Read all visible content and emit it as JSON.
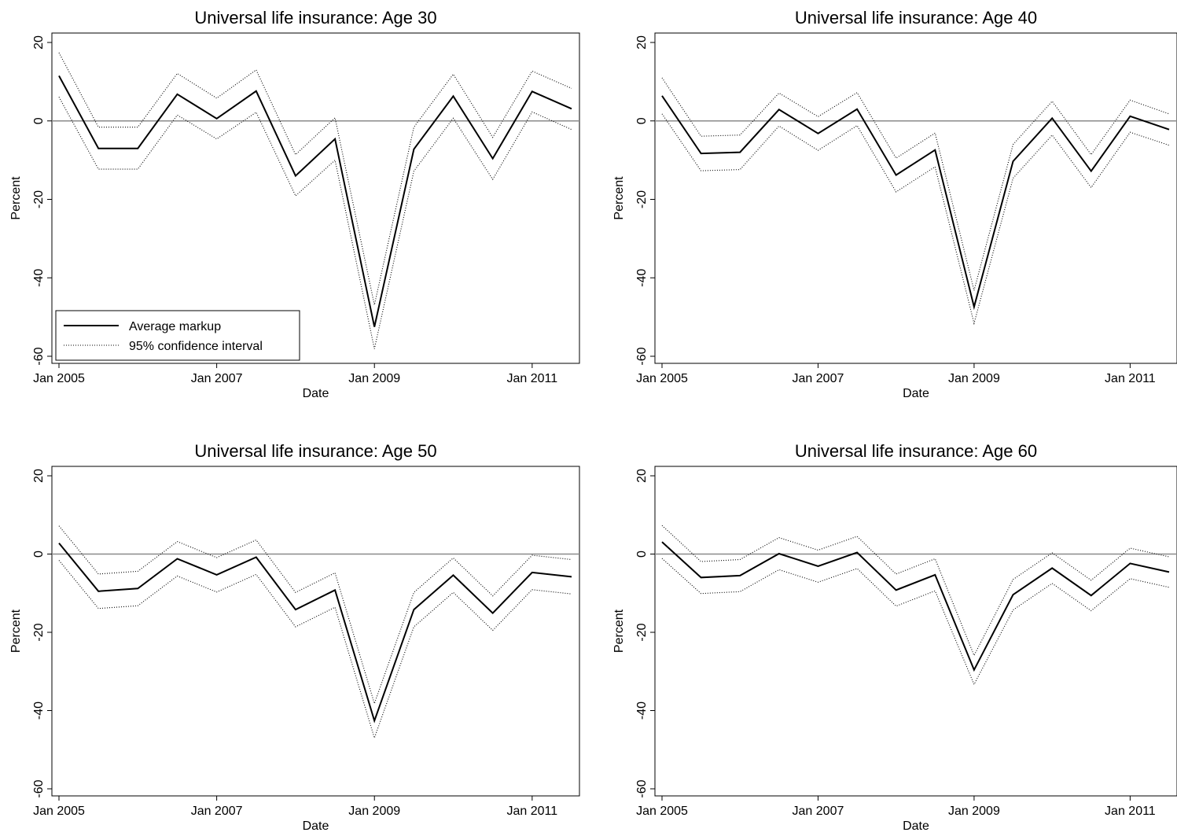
{
  "chart_data": [
    {
      "type": "line",
      "title": "Universal life insurance: Age 30",
      "xlabel": "Date",
      "ylabel": "Percent",
      "xlim": [
        "2005-01",
        "2011-07"
      ],
      "ylim": [
        -60,
        20
      ],
      "yticks": [
        -60,
        -40,
        -20,
        0,
        20
      ],
      "xticks": [
        "Jan 2005",
        "Jan 2007",
        "Jan 2009",
        "Jan 2011"
      ],
      "reference_line": 0,
      "legend": {
        "placement": "bottom-left",
        "entries": [
          "Average markup",
          "95% confidence interval"
        ]
      },
      "x": [
        "2005-01",
        "2005-07",
        "2006-01",
        "2006-07",
        "2007-01",
        "2007-07",
        "2008-01",
        "2008-07",
        "2009-01",
        "2009-07",
        "2010-01",
        "2010-07",
        "2011-01",
        "2011-07"
      ],
      "series": [
        {
          "name": "Average markup",
          "style": "solid",
          "values": [
            11.5,
            -7,
            -7,
            6.8,
            0.6,
            7.6,
            -14,
            -4.6,
            -52.5,
            -7.2,
            6.3,
            -9.6,
            7.5,
            3.1
          ]
        },
        {
          "style": "dotted",
          "values": [
            17.4,
            -1.6,
            -1.6,
            12.1,
            5.8,
            13,
            -8.6,
            0.8,
            -46.9,
            -1.6,
            11.9,
            -4.2,
            12.7,
            8.3
          ]
        },
        {
          "style": "dotted",
          "values": [
            6.1,
            -12.3,
            -12.3,
            1.5,
            -4.6,
            2.2,
            -19.1,
            -10,
            -58.1,
            -12.8,
            0.7,
            -14.9,
            2.3,
            -2.2
          ]
        }
      ]
    },
    {
      "type": "line",
      "title": "Universal life insurance: Age 40",
      "xlabel": "Date",
      "ylabel": "Percent",
      "xlim": [
        "2005-01",
        "2011-07"
      ],
      "ylim": [
        -60,
        20
      ],
      "yticks": [
        -60,
        -40,
        -20,
        0,
        20
      ],
      "xticks": [
        "Jan 2005",
        "Jan 2007",
        "Jan 2009",
        "Jan 2011"
      ],
      "reference_line": 0,
      "x": [
        "2005-01",
        "2005-07",
        "2006-01",
        "2006-07",
        "2007-01",
        "2007-07",
        "2008-01",
        "2008-07",
        "2009-01",
        "2009-07",
        "2010-01",
        "2010-07",
        "2011-01",
        "2011-07"
      ],
      "series": [
        {
          "style": "solid",
          "values": [
            6.4,
            -8.3,
            -8,
            2.9,
            -3.2,
            3,
            -13.8,
            -7.4,
            -47.4,
            -10.3,
            0.7,
            -12.8,
            1.2,
            -2.2
          ]
        },
        {
          "style": "dotted",
          "values": [
            11,
            -3.9,
            -3.6,
            7.1,
            1.1,
            7.2,
            -9.5,
            -3.1,
            -43.2,
            -6,
            5,
            -8.6,
            5.3,
            1.8
          ]
        },
        {
          "style": "dotted",
          "values": [
            1.8,
            -12.7,
            -12.4,
            -1.3,
            -7.5,
            -1.2,
            -18.1,
            -11.7,
            -51.6,
            -14.6,
            -3.6,
            -17,
            -2.9,
            -6.2
          ]
        }
      ]
    },
    {
      "type": "line",
      "title": "Universal life insurance: Age 50",
      "xlabel": "Date",
      "ylabel": "Percent",
      "xlim": [
        "2005-01",
        "2011-07"
      ],
      "ylim": [
        -60,
        20
      ],
      "yticks": [
        -60,
        -40,
        -20,
        0,
        20
      ],
      "xticks": [
        "Jan 2005",
        "Jan 2007",
        "Jan 2009",
        "Jan 2011"
      ],
      "reference_line": 0,
      "x": [
        "2005-01",
        "2005-07",
        "2006-01",
        "2006-07",
        "2007-01",
        "2007-07",
        "2008-01",
        "2008-07",
        "2009-01",
        "2009-07",
        "2010-01",
        "2010-07",
        "2011-01",
        "2011-07"
      ],
      "series": [
        {
          "style": "solid",
          "values": [
            2.8,
            -9.5,
            -8.8,
            -1.2,
            -5.3,
            -0.8,
            -14.2,
            -9.2,
            -42.6,
            -14.2,
            -5.4,
            -15.1,
            -4.7,
            -5.8
          ]
        },
        {
          "style": "dotted",
          "values": [
            7.2,
            -5.1,
            -4.4,
            3.2,
            -0.9,
            3.6,
            -9.8,
            -4.8,
            -38.2,
            -9.8,
            -1,
            -10.7,
            -0.3,
            -1.4
          ]
        },
        {
          "style": "dotted",
          "values": [
            -1.6,
            -13.9,
            -13.2,
            -5.6,
            -9.7,
            -5.2,
            -18.6,
            -13.6,
            -47,
            -18.6,
            -9.8,
            -19.5,
            -9.1,
            -10.2
          ]
        }
      ]
    },
    {
      "type": "line",
      "title": "Universal life insurance: Age 60",
      "xlabel": "Date",
      "ylabel": "Percent",
      "xlim": [
        "2005-01",
        "2011-07"
      ],
      "ylim": [
        -60,
        20
      ],
      "yticks": [
        -60,
        -40,
        -20,
        0,
        20
      ],
      "xticks": [
        "Jan 2005",
        "Jan 2007",
        "Jan 2009",
        "Jan 2011"
      ],
      "reference_line": 0,
      "x": [
        "2005-01",
        "2005-07",
        "2006-01",
        "2006-07",
        "2007-01",
        "2007-07",
        "2008-01",
        "2008-07",
        "2009-01",
        "2009-07",
        "2010-01",
        "2010-07",
        "2011-01",
        "2011-07"
      ],
      "series": [
        {
          "style": "solid",
          "values": [
            3.1,
            -6,
            -5.5,
            0.1,
            -3.1,
            0.4,
            -9.2,
            -5.3,
            -29.6,
            -10.4,
            -3.6,
            -10.6,
            -2.4,
            -4.6
          ]
        },
        {
          "style": "dotted",
          "values": [
            7.3,
            -1.9,
            -1.4,
            4.2,
            1,
            4.5,
            -5.1,
            -1.2,
            -25.9,
            -6.5,
            0.3,
            -6.7,
            1.5,
            -0.7
          ]
        },
        {
          "style": "dotted",
          "values": [
            -1.1,
            -10.1,
            -9.6,
            -4,
            -7.2,
            -3.7,
            -13.3,
            -9.4,
            -33.3,
            -14.3,
            -7.5,
            -14.5,
            -6.3,
            -8.5
          ]
        }
      ]
    }
  ]
}
